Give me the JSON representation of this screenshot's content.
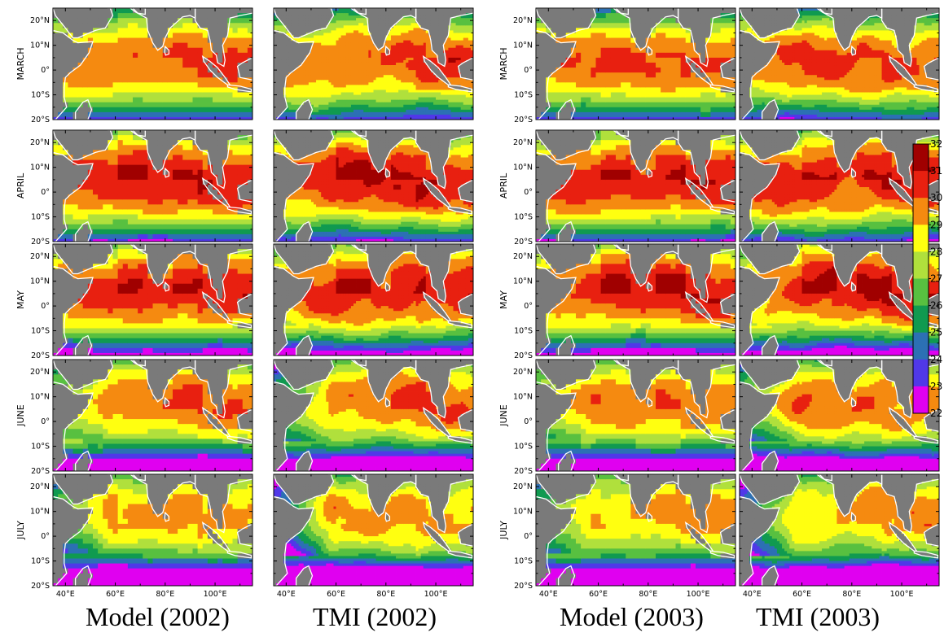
{
  "columns": [
    {
      "caption": "Model (2002)",
      "source": "model",
      "year": 2002
    },
    {
      "caption": "TMI (2002)",
      "source": "tmi",
      "year": 2002
    },
    {
      "caption": "Model (2003)",
      "source": "model",
      "year": 2003
    },
    {
      "caption": "TMI (2003)",
      "source": "tmi",
      "year": 2003
    }
  ],
  "rows": [
    {
      "month": "MARCH"
    },
    {
      "month": "APRIL"
    },
    {
      "month": "MAY"
    },
    {
      "month": "JUNE"
    },
    {
      "month": "JULY"
    }
  ],
  "lat_ticks": [
    "20°N",
    "10°N",
    "0°",
    "10°S",
    "20°S"
  ],
  "lon_ticks": [
    "40°E",
    "60°E",
    "80°E",
    "100°E"
  ],
  "colorbar": {
    "ticks": [
      "32",
      "31",
      "30",
      "29",
      "28",
      "27",
      "26",
      "25",
      "24",
      "23",
      "22"
    ],
    "bins": [
      {
        "from": 31,
        "to": 32,
        "color": "#a00000"
      },
      {
        "from": 30,
        "to": 31,
        "color": "#e82010"
      },
      {
        "from": 29,
        "to": 30,
        "color": "#f58a10"
      },
      {
        "from": 28,
        "to": 29,
        "color": "#ffff10"
      },
      {
        "from": 27,
        "to": 28,
        "color": "#b0e03c"
      },
      {
        "from": 26,
        "to": 27,
        "color": "#58c040"
      },
      {
        "from": 25,
        "to": 26,
        "color": "#109a50"
      },
      {
        "from": 24,
        "to": 25,
        "color": "#2c70b4"
      },
      {
        "from": 23,
        "to": 24,
        "color": "#5038e8"
      },
      {
        "from": 22,
        "to": 23,
        "color": "#e000f0"
      }
    ]
  },
  "land_color": "#7a7a7a"
}
